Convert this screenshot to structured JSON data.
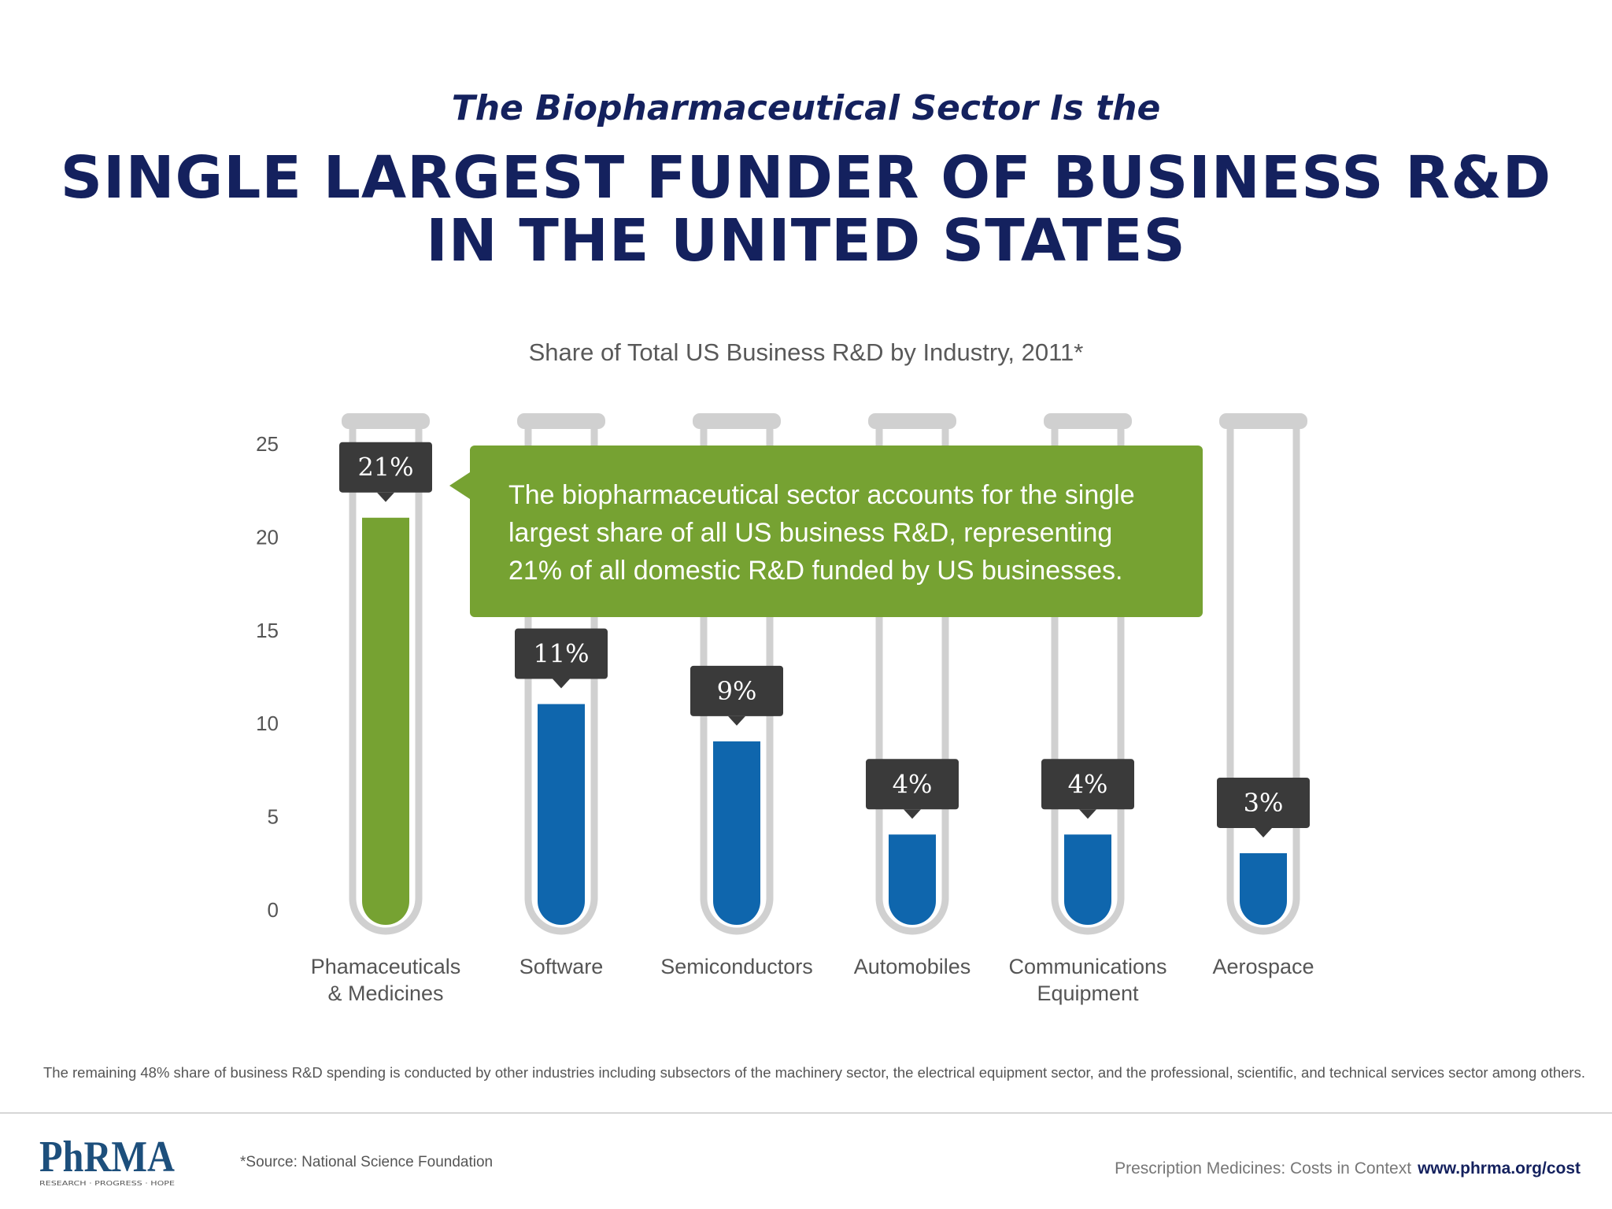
{
  "header": {
    "subtitle": "The Biopharmaceutical Sector Is the",
    "headline_line1": "SINGLE LARGEST FUNDER OF BUSINESS R&D",
    "headline_line2": "IN THE UNITED STATES"
  },
  "chart_data": {
    "type": "bar",
    "title": "Share of Total US Business R&D by Industry, 2011*",
    "categories": [
      "Phamaceuticals & Medicines",
      "Software",
      "Semiconductors",
      "Automobiles",
      "Communications Equipment",
      "Aerospace"
    ],
    "category_lines": [
      [
        "Phamaceuticals",
        "& Medicines"
      ],
      [
        "Software"
      ],
      [
        "Semiconductors"
      ],
      [
        "Automobiles"
      ],
      [
        "Communications",
        "Equipment"
      ],
      [
        "Aerospace"
      ]
    ],
    "values": [
      21,
      11,
      9,
      4,
      4,
      3
    ],
    "data_labels": [
      "21%",
      "11%",
      "9%",
      "4%",
      "4%",
      "3%"
    ],
    "bar_colors": [
      "#76a232",
      "#0f66ad",
      "#0f66ad",
      "#0f66ad",
      "#0f66ad",
      "#0f66ad"
    ],
    "ylim": [
      0,
      25
    ],
    "yticks": [
      0,
      5,
      10,
      15,
      20,
      25
    ],
    "xlabel": "",
    "ylabel": "",
    "grid": false,
    "legend": "none",
    "callout": "The biopharmaceutical sector accounts for the single largest share of all US business R&D, representing 21% of all domestic R&D funded by US businesses.",
    "callout_lines": [
      "The biopharmaceutical sector accounts for the single",
      "largest share of all US business R&D, representing",
      "21% of all domestic R&D funded by US businesses."
    ]
  },
  "footer": {
    "note": "The remaining 48% share of business R&D spending is conducted by other industries including subsectors of the machinery sector, the electrical equipment sector, and the professional, scientific, and technical services sector among others.",
    "source": "*Source: National Science Foundation",
    "tagline": "Prescription Medicines: Costs in Context",
    "url": "www.phrma.org/cost",
    "logo_text": "PhRMA",
    "logo_subtext": "RESEARCH · PROGRESS · HOPE"
  },
  "colors": {
    "navy": "#14215e",
    "green": "#76a232",
    "blue": "#0f66ad",
    "label_box": "#3a3a3a",
    "tube": "#d0d0d0"
  }
}
